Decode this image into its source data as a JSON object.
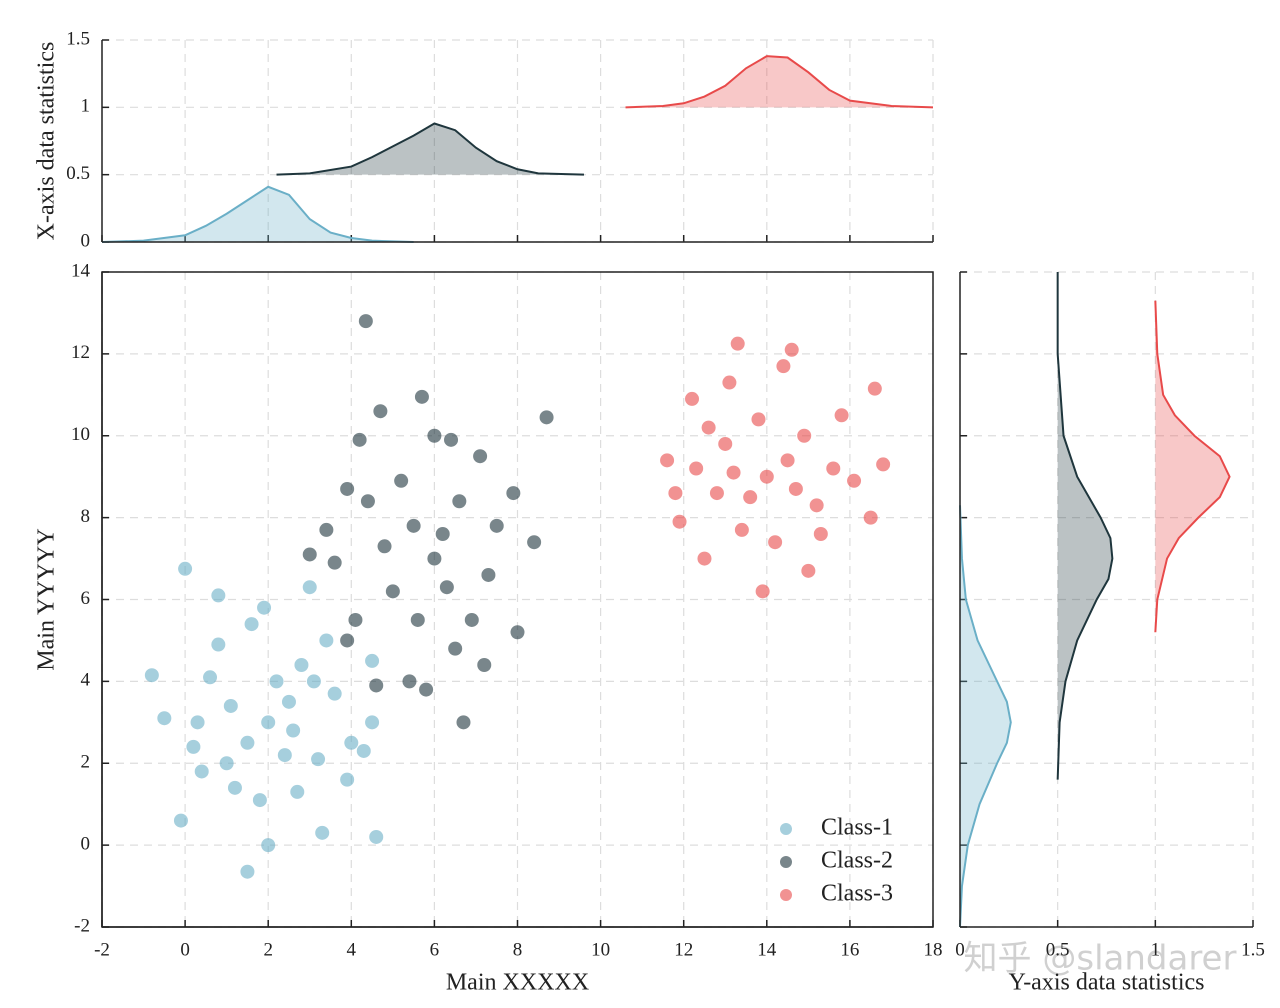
{
  "chart_data": [
    {
      "type": "scatter",
      "xlabel": "Main XXXXX",
      "ylabel": "Main YYYYY",
      "xlim": [
        -2,
        18
      ],
      "xticks": [
        -2,
        0,
        2,
        4,
        6,
        8,
        10,
        12,
        14,
        16,
        18
      ],
      "ylim": [
        -2,
        14
      ],
      "yticks": [
        -2,
        0,
        2,
        4,
        6,
        8,
        10,
        12,
        14
      ],
      "grid": true,
      "legend": "lower right",
      "series": [
        {
          "name": "Class-1",
          "color": "#6aafc7",
          "x": [
            2,
            1.5,
            2.5,
            0.8,
            3.2,
            1.2,
            2.8,
            0.3,
            1.8,
            3.6,
            -0.8,
            0,
            0.8,
            1.5,
            4.6,
            -0.1,
            2,
            3.3,
            4.5,
            4.5,
            3,
            0.2,
            1,
            2.4,
            2.2,
            1.6,
            3.9,
            4,
            -0.5,
            0.6,
            2.7,
            3.4,
            1.9,
            1.1,
            2.6,
            0.4,
            3.1,
            4.3
          ],
          "values": [
            3,
            2.5,
            3.5,
            4.9,
            2.1,
            1.4,
            4.4,
            3.0,
            1.1,
            3.7,
            4.15,
            6.75,
            6.1,
            -0.65,
            0.2,
            0.6,
            0,
            0.3,
            3,
            4.5,
            6.3,
            2.4,
            2,
            2.2,
            4,
            5.4,
            1.6,
            2.5,
            3.1,
            4.1,
            1.3,
            5.0,
            5.8,
            3.4,
            2.8,
            1.8,
            4.0,
            2.3
          ]
        },
        {
          "name": "Class-2",
          "color": "#1f363d",
          "x": [
            4.35,
            8.7,
            4.7,
            5.7,
            4.2,
            6,
            6.4,
            7.1,
            3.9,
            3.4,
            3,
            3.6,
            4.1,
            3.9,
            4.6,
            5.4,
            6.7,
            5.8,
            7.2,
            8,
            8.4,
            7.9,
            6.3,
            5.5,
            6.6,
            5,
            7.3,
            6,
            6.2,
            5.2,
            4.8,
            7.5,
            6.9,
            5.6,
            4.4,
            6.5
          ],
          "values": [
            12.8,
            10.45,
            10.6,
            10.95,
            9.9,
            10,
            9.9,
            9.5,
            8.7,
            7.7,
            7.1,
            6.9,
            5.5,
            5.0,
            3.9,
            4.0,
            3,
            3.8,
            4.4,
            5.2,
            7.4,
            8.6,
            6.3,
            7.8,
            8.4,
            6.2,
            6.6,
            7,
            7.6,
            8.9,
            7.3,
            7.8,
            5.5,
            5.5,
            8.4,
            4.8
          ]
        },
        {
          "name": "Class-3",
          "color": "#e84a4a",
          "x": [
            13.3,
            14.6,
            13.9,
            11.6,
            16.6,
            16.8,
            16.5,
            15,
            12.5,
            11.9,
            12.2,
            13.1,
            14.4,
            15.8,
            14,
            13.6,
            14.5,
            13,
            15.2,
            12.8,
            14.9,
            13.4,
            15.6,
            12.3,
            14.2,
            13.8,
            16.1,
            11.8,
            15.3,
            14.7,
            13.2,
            12.6
          ],
          "values": [
            12.25,
            12.1,
            6.2,
            9.4,
            11.15,
            9.3,
            8,
            6.7,
            7,
            7.9,
            10.9,
            11.3,
            11.7,
            10.5,
            9,
            8.5,
            9.4,
            9.8,
            8.3,
            8.6,
            10,
            7.7,
            9.2,
            9.2,
            7.4,
            10.4,
            8.9,
            8.6,
            7.6,
            8.7,
            9.1,
            10.2
          ]
        }
      ]
    },
    {
      "type": "area",
      "ylabel": "X-axis data statistics",
      "xlim": [
        -2,
        18
      ],
      "xticks": [
        -2,
        0,
        2,
        4,
        6,
        8,
        10,
        12,
        14,
        16,
        18
      ],
      "ylim": [
        0,
        1.5
      ],
      "yticks": [
        0,
        0.5,
        1,
        1.5
      ],
      "grid": true,
      "series": [
        {
          "color": "#6aafc7",
          "baseline": 0,
          "x": [
            -2,
            -1,
            0,
            0.5,
            1,
            1.5,
            2,
            2.5,
            3,
            3.5,
            4,
            4.5,
            5.5
          ],
          "values": [
            0,
            0.01,
            0.05,
            0.12,
            0.21,
            0.31,
            0.41,
            0.35,
            0.17,
            0.07,
            0.03,
            0.01,
            0
          ]
        },
        {
          "color": "#1f363d",
          "baseline": 0.5,
          "x": [
            2.2,
            3,
            4,
            4.5,
            5,
            5.5,
            6,
            6.5,
            7,
            7.5,
            8,
            8.5,
            9.6
          ],
          "values": [
            0.5,
            0.51,
            0.56,
            0.63,
            0.71,
            0.79,
            0.88,
            0.83,
            0.7,
            0.6,
            0.54,
            0.51,
            0.5
          ]
        },
        {
          "color": "#e84a4a",
          "baseline": 1,
          "x": [
            10.6,
            11.5,
            12,
            12.5,
            13,
            13.5,
            14,
            14.5,
            15,
            15.5,
            16,
            17,
            18
          ],
          "values": [
            1,
            1.01,
            1.03,
            1.08,
            1.16,
            1.29,
            1.38,
            1.37,
            1.26,
            1.13,
            1.05,
            1.01,
            1
          ]
        }
      ]
    },
    {
      "type": "area",
      "xlabel": "Y-axis data statistics",
      "xlim": [
        0,
        1.5
      ],
      "xticks": [
        0,
        0.5,
        1,
        1.5
      ],
      "ylim": [
        -2,
        14
      ],
      "yticks": [
        -2,
        0,
        2,
        4,
        6,
        8,
        10,
        12,
        14
      ],
      "grid": true,
      "series": [
        {
          "color": "#6aafc7",
          "baseline": 0,
          "y": [
            -2,
            -1,
            0,
            1,
            2,
            2.5,
            3,
            3.5,
            4,
            5,
            6,
            7,
            8.3
          ],
          "values": [
            0,
            0.01,
            0.04,
            0.1,
            0.19,
            0.24,
            0.26,
            0.24,
            0.19,
            0.09,
            0.03,
            0.01,
            0
          ]
        },
        {
          "color": "#1f363d",
          "baseline": 0.5,
          "y": [
            1.6,
            3,
            4,
            5,
            6,
            6.5,
            7,
            7.5,
            8,
            9,
            10,
            12,
            14
          ],
          "values": [
            0.5,
            0.51,
            0.54,
            0.6,
            0.7,
            0.76,
            0.78,
            0.77,
            0.72,
            0.6,
            0.53,
            0.5,
            0.5
          ]
        },
        {
          "color": "#e84a4a",
          "baseline": 1,
          "y": [
            5.2,
            6,
            7,
            7.5,
            8,
            8.5,
            9,
            9.5,
            10,
            10.5,
            11,
            12,
            13.3
          ],
          "values": [
            1,
            1.01,
            1.06,
            1.12,
            1.22,
            1.33,
            1.38,
            1.33,
            1.2,
            1.1,
            1.04,
            1.01,
            1
          ]
        }
      ]
    }
  ],
  "watermark": "知乎 @slandarer"
}
